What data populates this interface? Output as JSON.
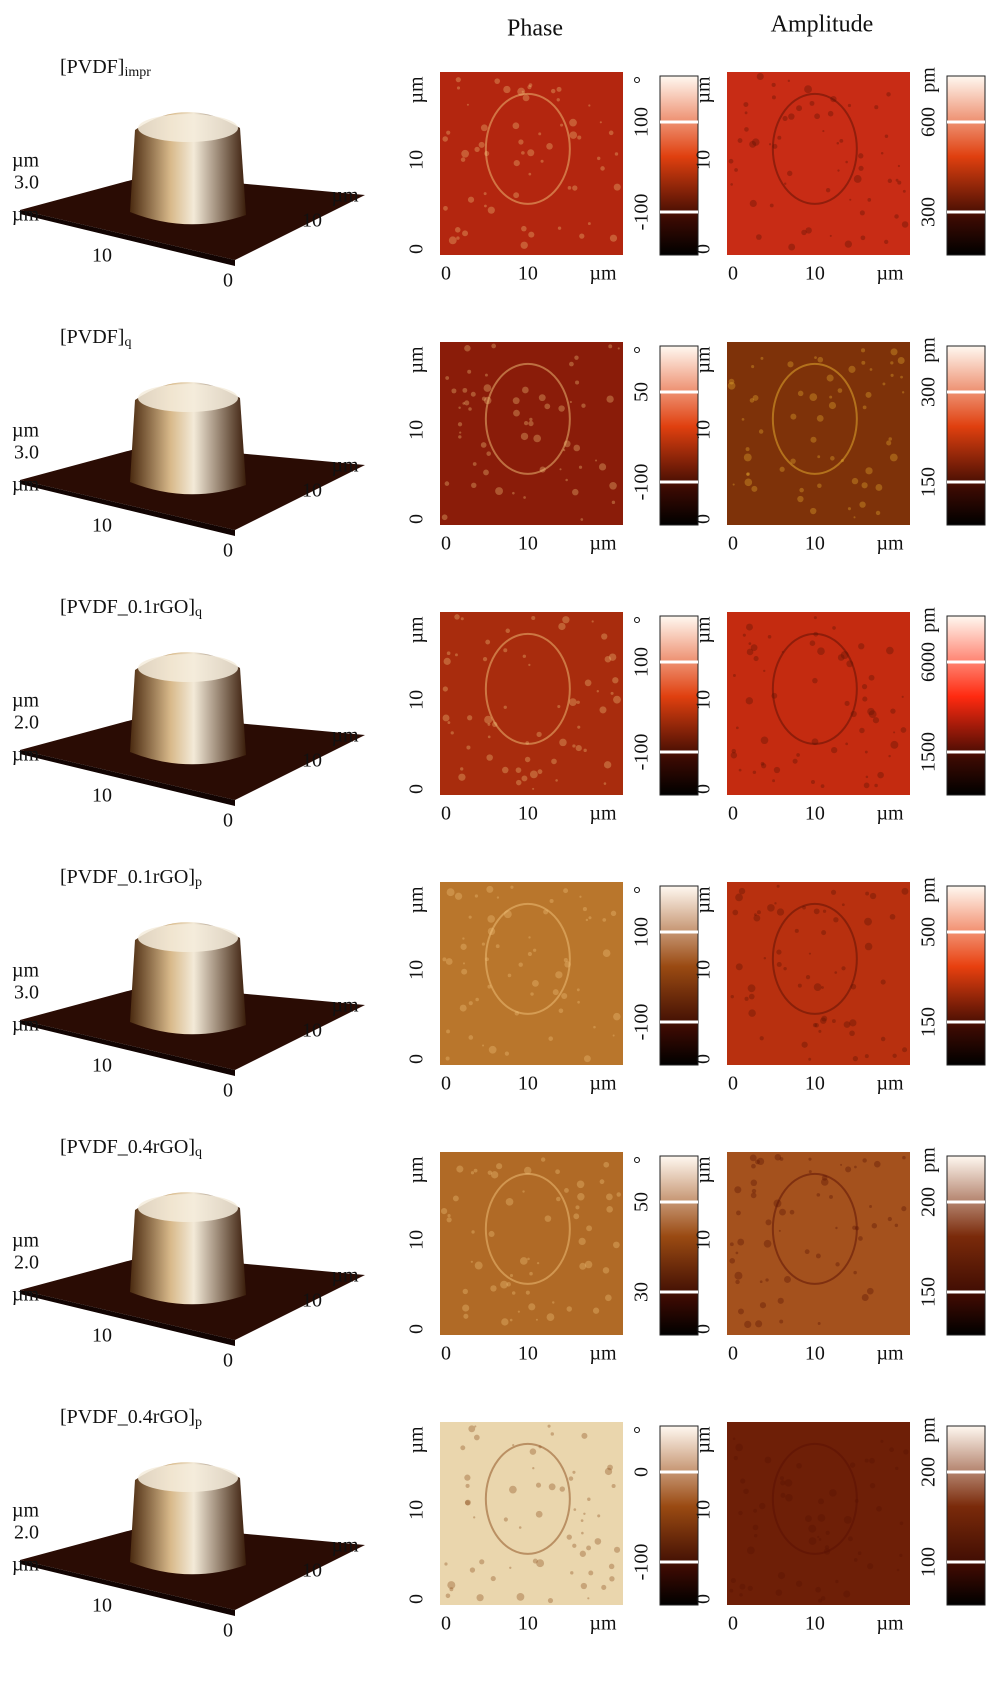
{
  "headers": {
    "phase": "Phase",
    "amplitude": "Amplitude"
  },
  "rows": [
    {
      "label": {
        "main": "[PVDF]",
        "sub": "impr"
      },
      "topography": [
        "µm",
        "3.0",
        "µm",
        "10",
        "µm",
        "10",
        "0"
      ],
      "phase": {
        "y_labels": [
          "µm",
          "10",
          "0"
        ],
        "x_labels": [
          "0",
          "10",
          "µm"
        ],
        "scale_unit": "°",
        "scale_ticks": [
          "100",
          "-100"
        ]
      },
      "amplitude": {
        "y_labels": [
          "µm",
          "10",
          "0"
        ],
        "x_labels": [
          "0",
          "10",
          "µm"
        ],
        "scale_unit": "pm",
        "scale_ticks": [
          "600",
          "300"
        ]
      }
    },
    {
      "label": {
        "main": "[PVDF]",
        "sub": "q"
      },
      "topography": [
        "µm",
        "3.0",
        "µm",
        "10",
        "µm",
        "10",
        "0"
      ],
      "phase": {
        "y_labels": [
          "µm",
          "10",
          "0"
        ],
        "x_labels": [
          "0",
          "10",
          "µm"
        ],
        "scale_unit": "°",
        "scale_ticks": [
          "50",
          "-100"
        ]
      },
      "amplitude": {
        "y_labels": [
          "µm",
          "10",
          "0"
        ],
        "x_labels": [
          "0",
          "10",
          "µm"
        ],
        "scale_unit": "pm",
        "scale_ticks": [
          "300",
          "150"
        ]
      }
    },
    {
      "label": {
        "main": "[PVDF_0.1rGO]",
        "sub": "q"
      },
      "topography": [
        "µm",
        "2.0",
        "µm",
        "10",
        "µm",
        "10",
        "0"
      ],
      "phase": {
        "y_labels": [
          "µm",
          "10",
          "0"
        ],
        "x_labels": [
          "0",
          "10",
          "µm"
        ],
        "scale_unit": "°",
        "scale_ticks": [
          "100",
          "-100"
        ]
      },
      "amplitude": {
        "y_labels": [
          "µm",
          "10",
          "0"
        ],
        "x_labels": [
          "0",
          "10",
          "µm"
        ],
        "scale_unit": "pm",
        "scale_ticks": [
          "6000",
          "1500"
        ]
      }
    },
    {
      "label": {
        "main": "[PVDF_0.1rGO]",
        "sub": "p"
      },
      "topography": [
        "µm",
        "3.0",
        "µm",
        "10",
        "µm",
        "10",
        "0"
      ],
      "phase": {
        "y_labels": [
          "µm",
          "10",
          "0"
        ],
        "x_labels": [
          "0",
          "10",
          "µm"
        ],
        "scale_unit": "°",
        "scale_ticks": [
          "100",
          "-100"
        ]
      },
      "amplitude": {
        "y_labels": [
          "µm",
          "10",
          "0"
        ],
        "x_labels": [
          "0",
          "10",
          "µm"
        ],
        "scale_unit": "pm",
        "scale_ticks": [
          "500",
          "150"
        ]
      }
    },
    {
      "label": {
        "main": "[PVDF_0.4rGO]",
        "sub": "q"
      },
      "topography": [
        "µm",
        "2.0",
        "µm",
        "10",
        "µm",
        "10",
        "0"
      ],
      "phase": {
        "y_labels": [
          "µm",
          "10",
          "0"
        ],
        "x_labels": [
          "0",
          "10",
          "µm"
        ],
        "scale_unit": "°",
        "scale_ticks": [
          "50",
          "30"
        ]
      },
      "amplitude": {
        "y_labels": [
          "µm",
          "10",
          "0"
        ],
        "x_labels": [
          "0",
          "10",
          "µm"
        ],
        "scale_unit": "pm",
        "scale_ticks": [
          "200",
          "150"
        ]
      }
    },
    {
      "label": {
        "main": "[PVDF_0.4rGO]",
        "sub": "p"
      },
      "topography": [
        "µm",
        "2.0",
        "µm",
        "10",
        "µm",
        "10",
        "0"
      ],
      "phase": {
        "y_labels": [
          "µm",
          "10",
          "0"
        ],
        "x_labels": [
          "0",
          "10",
          "µm"
        ],
        "scale_unit": "°",
        "scale_ticks": [
          "0",
          "-100"
        ]
      },
      "amplitude": {
        "y_labels": [
          "µm",
          "10",
          "0"
        ],
        "x_labels": [
          "0",
          "10",
          "µm"
        ],
        "scale_unit": "pm",
        "scale_ticks": [
          "200",
          "100"
        ]
      }
    }
  ]
}
